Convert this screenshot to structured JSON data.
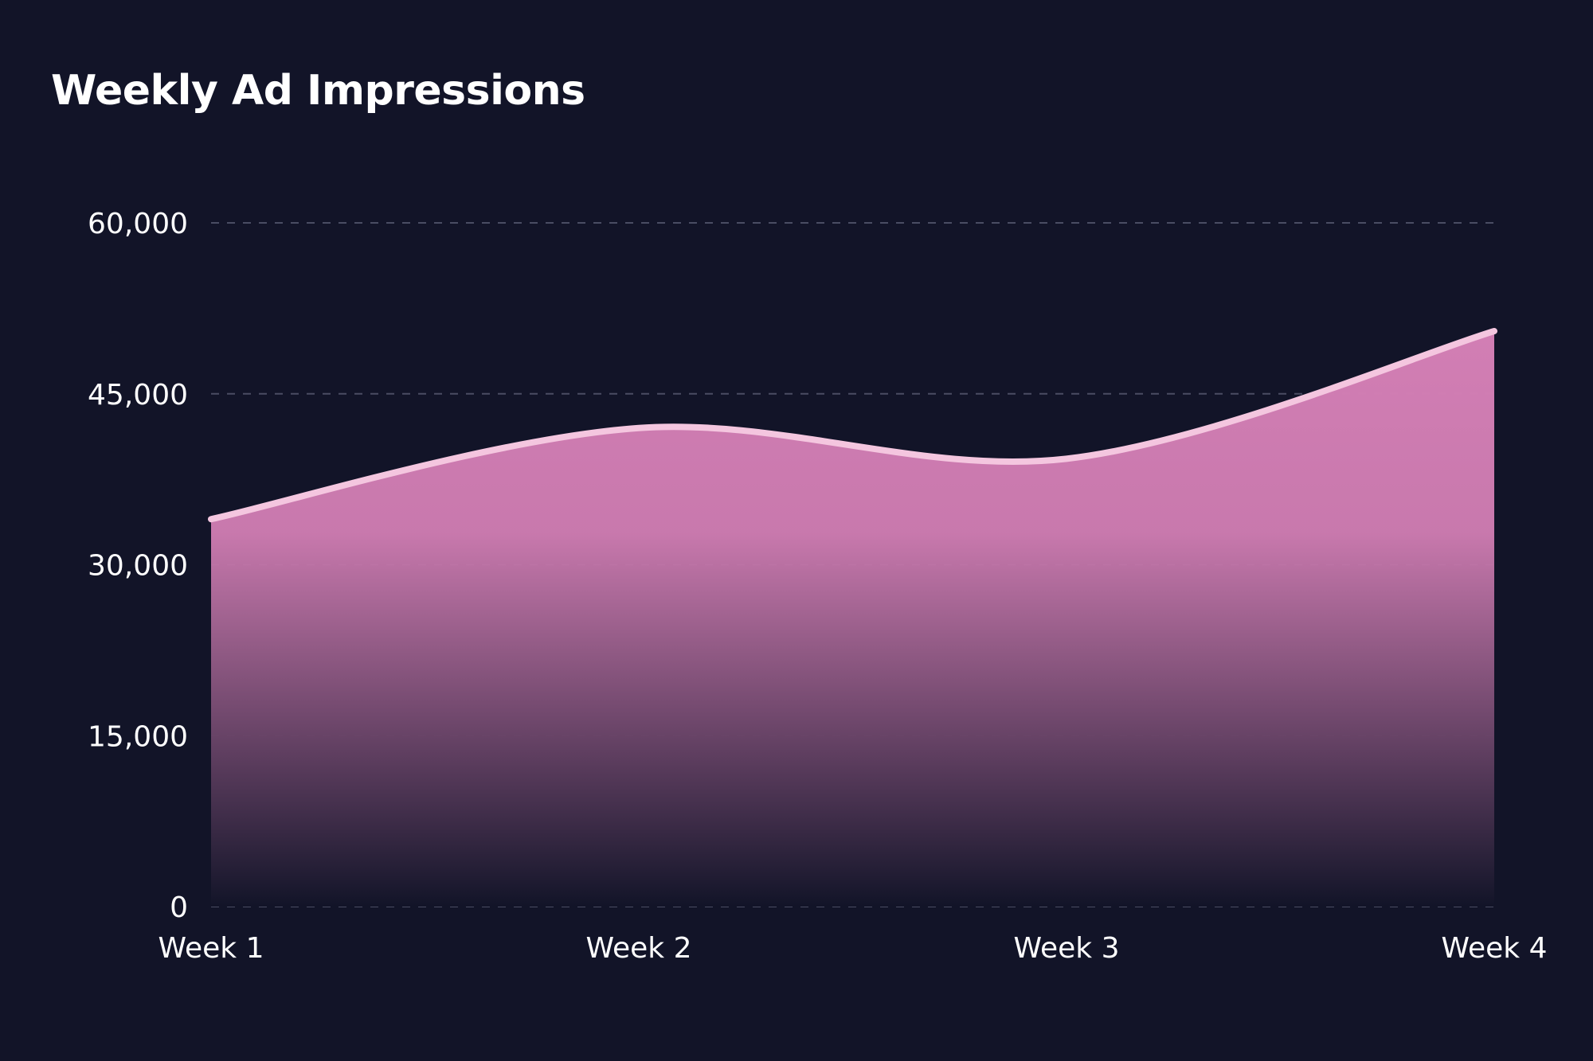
{
  "chart_data": {
    "type": "area",
    "title": "Weekly Ad Impressions",
    "xlabel": "",
    "ylabel": "",
    "categories": [
      "Week 1",
      "Week 2",
      "Week 3",
      "Week 4"
    ],
    "series": [
      {
        "values": [
          34000,
          42000,
          39300,
          50500
        ]
      }
    ],
    "ylim": [
      0,
      60000
    ],
    "yticks": [
      0,
      15000,
      30000,
      45000,
      60000
    ],
    "ytick_labels": [
      "0",
      "15,000",
      "30,000",
      "45,000",
      "60,000"
    ],
    "grid": true,
    "legend": "none",
    "colors": {
      "background": "#121428",
      "line": "#f4c6df",
      "fill_top": "#d27eb4",
      "fill_bottom": "#121428",
      "grid": "#4a4d63",
      "text": "#ffffff"
    }
  }
}
